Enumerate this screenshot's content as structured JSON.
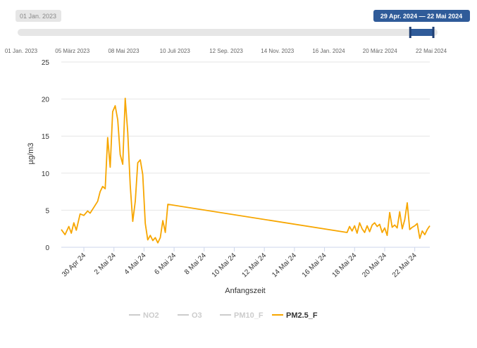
{
  "navigator": {
    "start_badge": "01 Jan. 2023",
    "range_badge": "29 Apr. 2024 — 22 Mai 2024",
    "axis_labels": [
      "01 Jan. 2023",
      "05 März 2023",
      "08 Mai 2023",
      "10 Juli 2023",
      "12 Sep. 2023",
      "14 Nov. 2023",
      "16 Jan. 2024",
      "20 März 2024",
      "22 Mai 2024"
    ],
    "selected_fraction": [
      0.935,
      0.99
    ]
  },
  "legend": {
    "items": [
      {
        "label": "NO2",
        "active": false,
        "color": "#cccccc"
      },
      {
        "label": "O3",
        "active": false,
        "color": "#cccccc"
      },
      {
        "label": "PM10_F",
        "active": false,
        "color": "#cccccc"
      },
      {
        "label": "PM2.5_F",
        "active": true,
        "color": "#f7a600"
      }
    ]
  },
  "chart_data": {
    "type": "line",
    "xlabel": "Anfangszeit",
    "ylabel": "µg/m3",
    "xlim": [
      "2024-04-28T12:00",
      "2024-05-23T00:00"
    ],
    "ylim": [
      0,
      25
    ],
    "y_ticks": [
      0,
      5,
      10,
      15,
      20,
      25
    ],
    "x_ticks": [
      {
        "date": "2024-04-30",
        "label": "30 Apr 24"
      },
      {
        "date": "2024-05-02",
        "label": "2 Mai 24"
      },
      {
        "date": "2024-05-04",
        "label": "4 Mai 24"
      },
      {
        "date": "2024-05-06",
        "label": "6 Mai 24"
      },
      {
        "date": "2024-05-08",
        "label": "8 Mai 24"
      },
      {
        "date": "2024-05-10",
        "label": "10 Mai 24"
      },
      {
        "date": "2024-05-12",
        "label": "12 Mai 24"
      },
      {
        "date": "2024-05-14",
        "label": "14 Mai 24"
      },
      {
        "date": "2024-05-16",
        "label": "16 Mai 24"
      },
      {
        "date": "2024-05-18",
        "label": "18 Mai 24"
      },
      {
        "date": "2024-05-20",
        "label": "20 Mai 24"
      },
      {
        "date": "2024-05-22",
        "label": "22 Mai 24"
      }
    ],
    "grid": true,
    "legend_position": "bottom",
    "series": [
      {
        "name": "PM2.5_F",
        "color": "#f7a600",
        "points": [
          [
            "2024-04-28T12:00",
            2.4
          ],
          [
            "2024-04-28T18:00",
            1.7
          ],
          [
            "2024-04-29T00:00",
            2.8
          ],
          [
            "2024-04-29T04:00",
            1.9
          ],
          [
            "2024-04-29T08:00",
            3.3
          ],
          [
            "2024-04-29T12:00",
            2.3
          ],
          [
            "2024-04-29T18:00",
            4.5
          ],
          [
            "2024-04-30T00:00",
            4.3
          ],
          [
            "2024-04-30T06:00",
            4.9
          ],
          [
            "2024-04-30T10:00",
            4.6
          ],
          [
            "2024-04-30T16:00",
            5.4
          ],
          [
            "2024-04-30T22:00",
            6.2
          ],
          [
            "2024-05-01T02:00",
            7.5
          ],
          [
            "2024-05-01T06:00",
            8.2
          ],
          [
            "2024-05-01T10:00",
            7.9
          ],
          [
            "2024-05-01T14:00",
            14.8
          ],
          [
            "2024-05-01T18:00",
            10.8
          ],
          [
            "2024-05-01T22:00",
            18.3
          ],
          [
            "2024-05-02T02:00",
            19.1
          ],
          [
            "2024-05-02T06:00",
            17.2
          ],
          [
            "2024-05-02T10:00",
            12.5
          ],
          [
            "2024-05-02T14:00",
            11.2
          ],
          [
            "2024-05-02T18:00",
            20.1
          ],
          [
            "2024-05-02T22:00",
            15.5
          ],
          [
            "2024-05-03T02:00",
            8.4
          ],
          [
            "2024-05-03T06:00",
            3.5
          ],
          [
            "2024-05-03T10:00",
            6.2
          ],
          [
            "2024-05-03T14:00",
            11.4
          ],
          [
            "2024-05-03T18:00",
            11.8
          ],
          [
            "2024-05-03T22:00",
            9.8
          ],
          [
            "2024-05-04T02:00",
            3.2
          ],
          [
            "2024-05-04T06:00",
            1.0
          ],
          [
            "2024-05-04T10:00",
            1.6
          ],
          [
            "2024-05-04T14:00",
            0.9
          ],
          [
            "2024-05-04T18:00",
            1.3
          ],
          [
            "2024-05-04T22:00",
            0.6
          ],
          [
            "2024-05-05T02:00",
            1.3
          ],
          [
            "2024-05-05T06:00",
            3.6
          ],
          [
            "2024-05-05T10:00",
            2.0
          ],
          [
            "2024-05-05T14:00",
            5.8
          ],
          [
            "2024-05-17T12:00",
            2.0
          ],
          [
            "2024-05-17T16:00",
            2.8
          ],
          [
            "2024-05-17T20:00",
            2.2
          ],
          [
            "2024-05-18T00:00",
            2.9
          ],
          [
            "2024-05-18T04:00",
            1.9
          ],
          [
            "2024-05-18T08:00",
            3.3
          ],
          [
            "2024-05-18T12:00",
            2.5
          ],
          [
            "2024-05-18T16:00",
            2.0
          ],
          [
            "2024-05-18T20:00",
            2.9
          ],
          [
            "2024-05-19T00:00",
            2.1
          ],
          [
            "2024-05-19T04:00",
            3.0
          ],
          [
            "2024-05-19T08:00",
            3.3
          ],
          [
            "2024-05-19T12:00",
            2.8
          ],
          [
            "2024-05-19T16:00",
            3.1
          ],
          [
            "2024-05-19T20:00",
            2.0
          ],
          [
            "2024-05-20T00:00",
            2.6
          ],
          [
            "2024-05-20T04:00",
            1.6
          ],
          [
            "2024-05-20T08:00",
            4.7
          ],
          [
            "2024-05-20T12:00",
            2.7
          ],
          [
            "2024-05-20T16:00",
            3.0
          ],
          [
            "2024-05-20T20:00",
            2.6
          ],
          [
            "2024-05-21T00:00",
            4.8
          ],
          [
            "2024-05-21T04:00",
            2.5
          ],
          [
            "2024-05-21T08:00",
            3.7
          ],
          [
            "2024-05-21T12:00",
            6.0
          ],
          [
            "2024-05-21T16:00",
            2.4
          ],
          [
            "2024-05-21T20:00",
            2.7
          ],
          [
            "2024-05-22T00:00",
            2.9
          ],
          [
            "2024-05-22T04:00",
            3.2
          ],
          [
            "2024-05-22T08:00",
            1.2
          ],
          [
            "2024-05-22T12:00",
            2.2
          ],
          [
            "2024-05-22T16:00",
            1.7
          ],
          [
            "2024-05-22T20:00",
            2.4
          ],
          [
            "2024-05-23T00:00",
            2.9
          ]
        ]
      }
    ]
  }
}
